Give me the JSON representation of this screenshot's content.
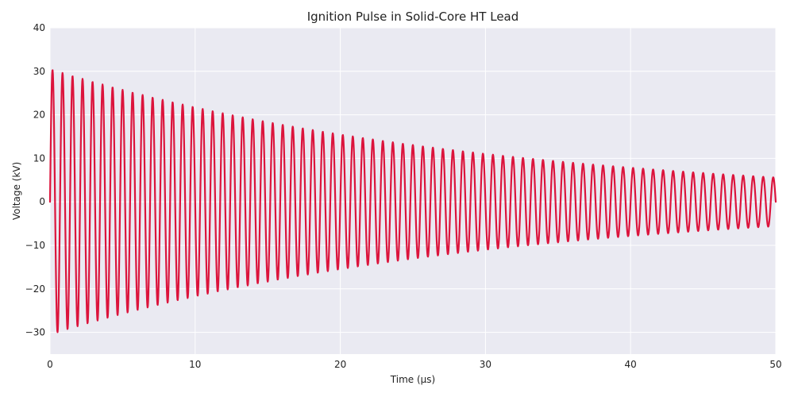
{
  "colors": {
    "series": "#dc143c",
    "plot_background": "#eaeaf2",
    "grid": "#ffffff"
  },
  "chart_data": {
    "type": "line",
    "title": "Ignition Pulse in Solid-Core HT Lead",
    "xlabel": "Time (µs)",
    "ylabel": "Voltage (kV)",
    "xlim": [
      0,
      50
    ],
    "ylim": [
      -35,
      40
    ],
    "xticks": [
      0,
      10,
      20,
      30,
      40,
      50
    ],
    "xtick_labels": [
      "0",
      "10",
      "20",
      "30",
      "40",
      "50"
    ],
    "yticks": [
      -30,
      -20,
      -10,
      0,
      10,
      20,
      30,
      40
    ],
    "ytick_labels": [
      "−30",
      "−20",
      "−10",
      "0",
      "10",
      "20",
      "30",
      "40"
    ],
    "grid": true,
    "legend": "none",
    "series": [
      {
        "name": "Voltage",
        "model": "damped_sine",
        "amplitude_kv": 30.5,
        "frequency_mhz": 1.45,
        "decay_time_constant_us": 29.5,
        "t_start_us": 0,
        "t_end_us": 50,
        "sample_step_us": 0.02
      }
    ]
  }
}
